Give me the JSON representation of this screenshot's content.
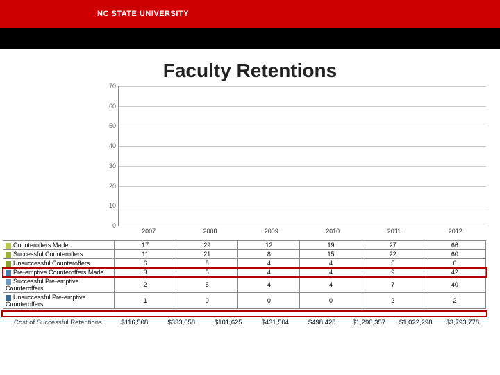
{
  "brand": "NC STATE UNIVERSITY",
  "title": "Faculty Retentions",
  "chart": {
    "type": "bar",
    "years": [
      "2007",
      "2008",
      "2009",
      "2010",
      "2011",
      "2012"
    ],
    "ylim": [
      0,
      70
    ],
    "yticks": [
      0,
      10,
      20,
      30,
      40,
      50,
      60,
      70
    ],
    "grid_color": "#cccccc",
    "axis_color": "#888888",
    "series": [
      {
        "name": "Counteroffers Made",
        "color": "#b9c94a",
        "pattern": "vstripe",
        "values": [
          17,
          29,
          12,
          19,
          27,
          66
        ]
      },
      {
        "name": "Successful Counteroffers",
        "color": "#9fb23a",
        "pattern": "diag",
        "values": [
          11,
          21,
          8,
          15,
          22,
          60
        ]
      },
      {
        "name": "Unsuccessful Counteroffers",
        "color": "#8aa02f",
        "pattern": "diag2",
        "values": [
          6,
          8,
          4,
          4,
          5,
          6
        ]
      },
      {
        "name": "Pre-emptive Counteroffers Made",
        "color": "#4a7ba6",
        "pattern": "solid",
        "values": [
          3,
          5,
          4,
          4,
          9,
          42
        ]
      },
      {
        "name": "Successful Pre-emptive Counteroffers",
        "color": "#6d97bc",
        "pattern": "hstripe",
        "values": [
          2,
          5,
          4,
          4,
          7,
          40
        ]
      },
      {
        "name": "Unsuccessful Pre-emptive Counteroffers",
        "color": "#3b6a94",
        "pattern": "dots",
        "values": [
          1,
          0,
          0,
          0,
          2,
          2
        ]
      }
    ],
    "extra_hidden_series_count": 1
  },
  "cost": {
    "label": "Cost of Successful Retentions",
    "values": [
      "$116,508",
      "$333,058",
      "$101,625",
      "$431,504",
      "$498,428",
      "$1,290,357",
      "$1,022,298",
      "$3,793,778"
    ]
  },
  "highlight_series_index": 3,
  "highlight_color": "#b00000"
}
